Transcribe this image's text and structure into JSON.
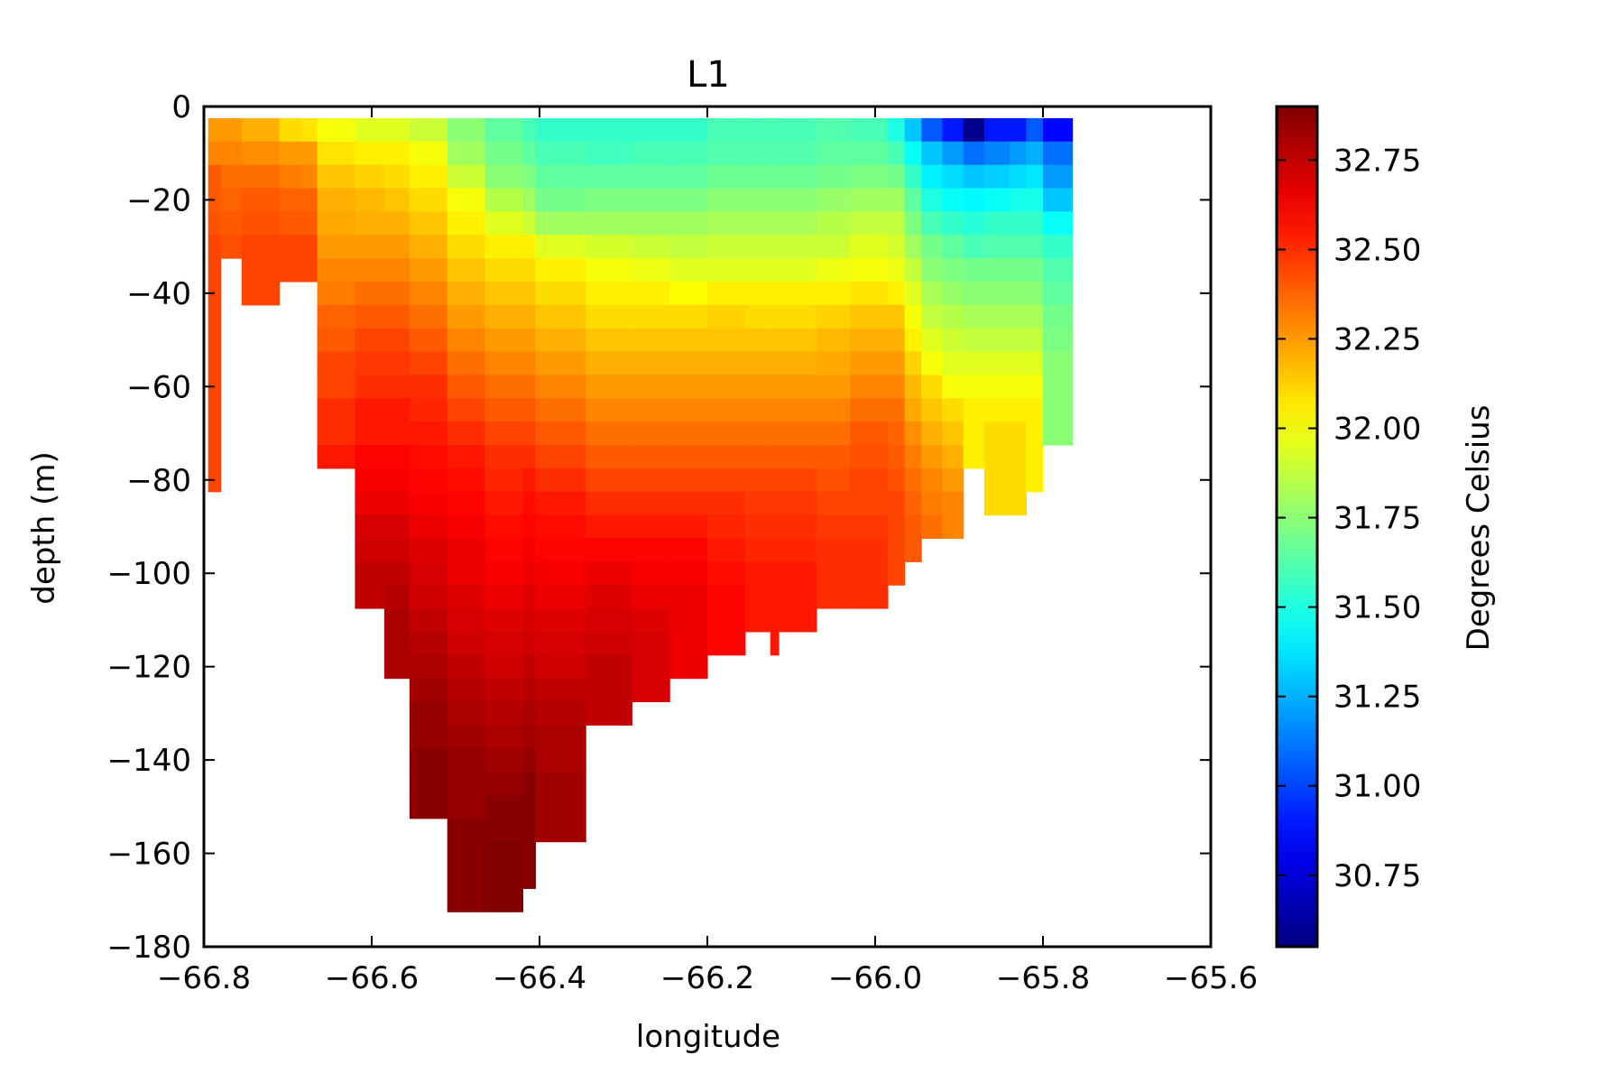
{
  "chart_data": {
    "type": "heatmap",
    "title": "L1",
    "xlabel": "longitude",
    "ylabel": "depth (m)",
    "xlim": [
      -66.8,
      -65.6
    ],
    "ylim": [
      -180,
      0
    ],
    "x_ticks": [
      "−66.8",
      "−66.6",
      "−66.4",
      "−66.2",
      "−66.0",
      "−65.8",
      "−65.6"
    ],
    "y_ticks": [
      "0",
      "−20",
      "−40",
      "−60",
      "−80",
      "−100",
      "−120",
      "−140",
      "−160",
      "−180"
    ],
    "colorbar": {
      "label": "Degrees Celsius",
      "colormap": "jet",
      "range": [
        30.55,
        32.9
      ],
      "ticks": [
        "30.75",
        "31.00",
        "31.25",
        "31.50",
        "31.75",
        "32.00",
        "32.25",
        "32.50",
        "32.75"
      ]
    },
    "cell_depth_step": 5,
    "depth_top": -2.5,
    "columns": [
      {
        "x0": -66.795,
        "x1": -66.78,
        "bottom": -82.5,
        "values": [
          32.25,
          32.3,
          32.4,
          32.4,
          32.42,
          32.45,
          32.45,
          32.45,
          32.45,
          32.45,
          32.45,
          32.45,
          32.45,
          32.45,
          32.45,
          32.45
        ]
      },
      {
        "x0": -66.78,
        "x1": -66.755,
        "bottom": -32.5,
        "values": [
          32.25,
          32.3,
          32.35,
          32.38,
          32.4,
          32.42
        ]
      },
      {
        "x0": -66.755,
        "x1": -66.71,
        "bottom": -42.5,
        "values": [
          32.2,
          32.28,
          32.35,
          32.4,
          32.42,
          32.45,
          32.45,
          32.45
        ]
      },
      {
        "x0": -66.71,
        "x1": -66.685,
        "bottom": -37.5,
        "values": [
          32.1,
          32.25,
          32.32,
          32.38,
          32.4,
          32.45,
          32.45
        ]
      },
      {
        "x0": -66.685,
        "x1": -66.665,
        "bottom": -37.5,
        "values": [
          32.08,
          32.25,
          32.3,
          32.38,
          32.4,
          32.45,
          32.45
        ]
      },
      {
        "x0": -66.665,
        "x1": -66.62,
        "bottom": -77.5,
        "values": [
          32.0,
          32.08,
          32.15,
          32.2,
          32.22,
          32.25,
          32.3,
          32.32,
          32.38,
          32.4,
          32.45,
          32.45,
          32.5,
          32.5,
          32.55
        ]
      },
      {
        "x0": -66.62,
        "x1": -66.585,
        "bottom": -107.5,
        "values": [
          31.95,
          32.05,
          32.12,
          32.18,
          32.2,
          32.25,
          32.3,
          32.35,
          32.4,
          32.45,
          32.48,
          32.5,
          32.55,
          32.55,
          32.6,
          32.62,
          32.65,
          32.7,
          32.72,
          32.75,
          32.75
        ]
      },
      {
        "x0": -66.585,
        "x1": -66.555,
        "bottom": -122.5,
        "values": [
          31.95,
          32.05,
          32.1,
          32.15,
          32.2,
          32.25,
          32.3,
          32.35,
          32.4,
          32.45,
          32.48,
          32.5,
          32.55,
          32.55,
          32.6,
          32.62,
          32.65,
          32.7,
          32.72,
          32.75,
          32.78,
          32.8,
          32.8,
          32.8
        ]
      },
      {
        "x0": -66.555,
        "x1": -66.51,
        "bottom": -152.5,
        "values": [
          31.9,
          32.0,
          32.05,
          32.1,
          32.15,
          32.2,
          32.25,
          32.3,
          32.35,
          32.4,
          32.45,
          32.5,
          32.52,
          32.55,
          32.58,
          32.6,
          32.62,
          32.65,
          32.68,
          32.7,
          32.72,
          32.75,
          32.78,
          32.8,
          32.82,
          32.85,
          32.85,
          32.88,
          32.88,
          32.88
        ]
      },
      {
        "x0": -66.51,
        "x1": -66.465,
        "bottom": -172.5,
        "values": [
          31.75,
          31.8,
          31.9,
          32.0,
          32.05,
          32.1,
          32.15,
          32.2,
          32.25,
          32.3,
          32.35,
          32.4,
          32.45,
          32.5,
          32.55,
          32.58,
          32.6,
          32.62,
          32.65,
          32.65,
          32.68,
          32.7,
          32.72,
          32.75,
          32.78,
          32.8,
          32.82,
          32.85,
          32.85,
          32.85,
          32.88,
          32.88,
          32.88,
          32.88
        ]
      },
      {
        "x0": -66.465,
        "x1": -66.42,
        "bottom": -172.5,
        "values": [
          31.65,
          31.7,
          31.75,
          31.85,
          31.95,
          32.05,
          32.1,
          32.15,
          32.2,
          32.25,
          32.3,
          32.35,
          32.4,
          32.45,
          32.5,
          32.52,
          32.55,
          32.58,
          32.6,
          32.62,
          32.65,
          32.68,
          32.7,
          32.72,
          32.75,
          32.78,
          32.8,
          32.82,
          32.85,
          32.88,
          32.88,
          32.9,
          32.9,
          32.9
        ]
      },
      {
        "x0": -66.42,
        "x1": -66.405,
        "bottom": -167.5,
        "values": [
          31.6,
          31.65,
          31.72,
          31.8,
          31.9,
          32.05,
          32.1,
          32.15,
          32.2,
          32.25,
          32.3,
          32.35,
          32.4,
          32.45,
          32.5,
          32.55,
          32.58,
          32.6,
          32.62,
          32.65,
          32.68,
          32.7,
          32.72,
          32.75,
          32.78,
          32.8,
          32.82,
          32.85,
          32.88,
          32.88,
          32.88,
          32.88,
          32.88
        ]
      },
      {
        "x0": -66.405,
        "x1": -66.345,
        "bottom": -157.5,
        "values": [
          31.55,
          31.6,
          31.65,
          31.7,
          31.8,
          31.95,
          32.05,
          32.1,
          32.15,
          32.2,
          32.25,
          32.3,
          32.35,
          32.4,
          32.45,
          32.5,
          32.55,
          32.58,
          32.6,
          32.62,
          32.65,
          32.68,
          32.7,
          32.72,
          32.75,
          32.78,
          32.8,
          32.8,
          32.82,
          32.82,
          32.82
        ]
      },
      {
        "x0": -66.345,
        "x1": -66.29,
        "bottom": -132.5,
        "values": [
          31.55,
          31.58,
          31.65,
          31.72,
          31.8,
          31.92,
          32.0,
          32.05,
          32.1,
          32.15,
          32.2,
          32.25,
          32.3,
          32.35,
          32.4,
          32.45,
          32.5,
          32.55,
          32.6,
          32.65,
          32.68,
          32.7,
          32.72,
          32.75,
          32.75,
          32.75
        ]
      },
      {
        "x0": -66.29,
        "x1": -66.245,
        "bottom": -127.5,
        "values": [
          31.55,
          31.6,
          31.65,
          31.72,
          31.8,
          31.9,
          31.98,
          32.05,
          32.1,
          32.15,
          32.2,
          32.25,
          32.3,
          32.35,
          32.4,
          32.45,
          32.5,
          32.55,
          32.6,
          32.62,
          32.65,
          32.68,
          32.7,
          32.7,
          32.7
        ]
      },
      {
        "x0": -66.245,
        "x1": -66.2,
        "bottom": -122.5,
        "values": [
          31.55,
          31.6,
          31.65,
          31.72,
          31.8,
          31.88,
          31.95,
          32.02,
          32.1,
          32.15,
          32.2,
          32.25,
          32.3,
          32.35,
          32.4,
          32.45,
          32.5,
          32.55,
          32.6,
          32.62,
          32.65,
          32.65,
          32.65,
          32.65
        ]
      },
      {
        "x0": -66.2,
        "x1": -66.155,
        "bottom": -117.5,
        "values": [
          31.6,
          31.62,
          31.68,
          31.75,
          31.82,
          31.9,
          31.95,
          32.05,
          32.12,
          32.15,
          32.2,
          32.25,
          32.3,
          32.35,
          32.4,
          32.45,
          32.5,
          32.52,
          32.55,
          32.58,
          32.6,
          32.6,
          32.6
        ]
      },
      {
        "x0": -66.155,
        "x1": -66.125,
        "bottom": -112.5,
        "values": [
          31.6,
          31.62,
          31.68,
          31.75,
          31.82,
          31.9,
          31.95,
          32.05,
          32.1,
          32.15,
          32.2,
          32.25,
          32.3,
          32.35,
          32.4,
          32.45,
          32.48,
          32.5,
          32.52,
          32.55,
          32.55,
          32.55
        ]
      },
      {
        "x0": -66.125,
        "x1": -66.115,
        "bottom": -117.5,
        "values": [
          31.6,
          31.62,
          31.68,
          31.75,
          31.82,
          31.9,
          31.95,
          32.05,
          32.1,
          32.15,
          32.2,
          32.25,
          32.3,
          32.35,
          32.4,
          32.45,
          32.48,
          32.5,
          32.52,
          32.55,
          32.55,
          32.55,
          32.55
        ]
      },
      {
        "x0": -66.115,
        "x1": -66.07,
        "bottom": -112.5,
        "values": [
          31.6,
          31.62,
          31.68,
          31.75,
          31.82,
          31.9,
          31.95,
          32.05,
          32.1,
          32.15,
          32.2,
          32.25,
          32.3,
          32.35,
          32.4,
          32.45,
          32.48,
          32.5,
          32.52,
          32.55,
          32.55,
          32.55
        ]
      },
      {
        "x0": -66.07,
        "x1": -66.03,
        "bottom": -107.5,
        "values": [
          31.62,
          31.65,
          31.7,
          31.78,
          31.85,
          31.9,
          31.98,
          32.05,
          32.12,
          32.18,
          32.22,
          32.25,
          32.3,
          32.35,
          32.4,
          32.42,
          32.45,
          32.48,
          32.5,
          32.5,
          32.5
        ]
      },
      {
        "x0": -66.03,
        "x1": -65.985,
        "bottom": -107.5,
        "values": [
          31.6,
          31.65,
          31.72,
          31.8,
          31.88,
          31.95,
          32.0,
          32.08,
          32.15,
          32.2,
          32.25,
          32.3,
          32.35,
          32.4,
          32.42,
          32.45,
          32.45,
          32.48,
          32.5,
          32.5,
          32.5
        ]
      },
      {
        "x0": -65.985,
        "x1": -65.965,
        "bottom": -102.5,
        "values": [
          31.5,
          31.6,
          31.7,
          31.8,
          31.88,
          31.92,
          31.98,
          32.05,
          32.15,
          32.2,
          32.25,
          32.3,
          32.35,
          32.38,
          32.4,
          32.42,
          32.45,
          32.45,
          32.45,
          32.45
        ]
      },
      {
        "x0": -65.965,
        "x1": -65.945,
        "bottom": -97.5,
        "values": [
          31.3,
          31.45,
          31.55,
          31.65,
          31.72,
          31.8,
          31.88,
          31.95,
          32.0,
          32.05,
          32.12,
          32.18,
          32.22,
          32.28,
          32.32,
          32.35,
          32.38,
          32.4,
          32.4
        ]
      },
      {
        "x0": -65.945,
        "x1": -65.92,
        "bottom": -92.5,
        "values": [
          31.05,
          31.3,
          31.4,
          31.5,
          31.6,
          31.7,
          31.75,
          31.82,
          31.88,
          31.95,
          32.0,
          32.1,
          32.15,
          32.2,
          32.25,
          32.3,
          32.32,
          32.35
        ]
      },
      {
        "x0": -65.92,
        "x1": -65.895,
        "bottom": -92.5,
        "values": [
          30.9,
          31.2,
          31.35,
          31.45,
          31.55,
          31.65,
          31.72,
          31.78,
          31.85,
          31.9,
          31.95,
          32.0,
          32.1,
          32.15,
          32.2,
          32.25,
          32.3,
          32.3
        ]
      },
      {
        "x0": -65.895,
        "x1": -65.87,
        "bottom": -77.5,
        "values": [
          30.58,
          31.1,
          31.3,
          31.42,
          31.52,
          31.6,
          31.7,
          31.75,
          31.82,
          31.88,
          31.95,
          32.0,
          32.05,
          32.05,
          32.05
        ]
      },
      {
        "x0": -65.87,
        "x1": -65.84,
        "bottom": -87.5,
        "values": [
          30.9,
          31.15,
          31.32,
          31.45,
          31.55,
          31.62,
          31.7,
          31.75,
          31.82,
          31.88,
          31.95,
          32.0,
          32.05,
          32.1,
          32.1,
          32.1,
          32.1
        ]
      },
      {
        "x0": -65.84,
        "x1": -65.82,
        "bottom": -87.5,
        "values": [
          30.9,
          31.2,
          31.35,
          31.48,
          31.55,
          31.62,
          31.7,
          31.75,
          31.82,
          31.88,
          31.95,
          32.0,
          32.05,
          32.1,
          32.1,
          32.1,
          32.1
        ]
      },
      {
        "x0": -65.82,
        "x1": -65.8,
        "bottom": -82.5,
        "values": [
          31.05,
          31.25,
          31.38,
          31.48,
          31.55,
          31.62,
          31.7,
          31.75,
          31.82,
          31.88,
          31.95,
          32.0,
          32.05,
          32.05,
          32.05,
          32.05
        ]
      },
      {
        "x0": -65.8,
        "x1": -65.765,
        "bottom": -72.5,
        "values": [
          30.85,
          31.1,
          31.2,
          31.3,
          31.45,
          31.55,
          31.62,
          31.65,
          31.7,
          31.72,
          31.75,
          31.75,
          31.75,
          31.75
        ]
      }
    ]
  }
}
